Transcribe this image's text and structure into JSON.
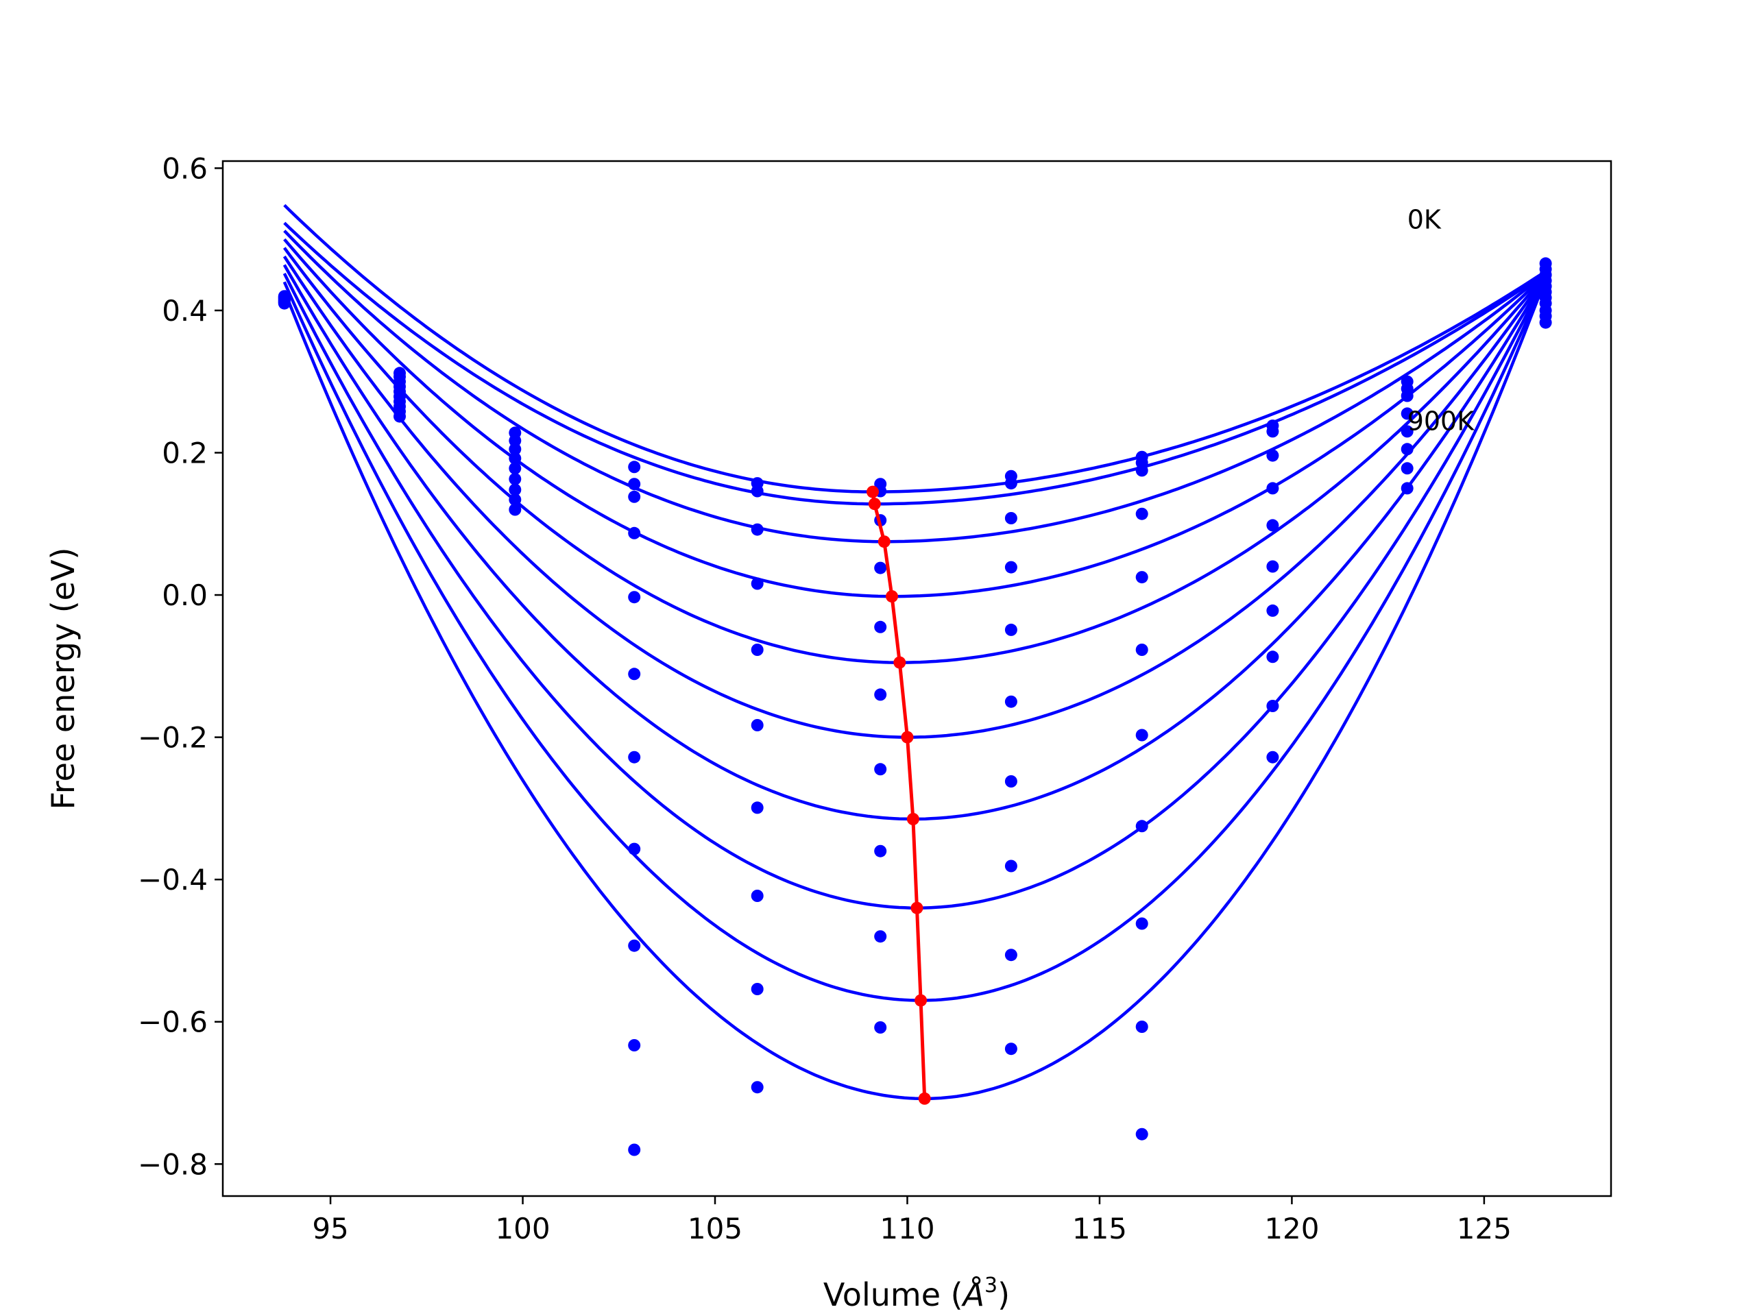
{
  "chart_data": {
    "type": "scatter",
    "title": "",
    "xlabel": "Volume (Å³)",
    "xlabel_main": "Volume (",
    "xlabel_unit": "Å",
    "xlabel_sup": "3",
    "xlabel_close": ")",
    "ylabel": "Free energy (eV)",
    "xlim": [
      92.2,
      128.3
    ],
    "ylim": [
      -0.845,
      0.61
    ],
    "xticks": [
      95,
      100,
      105,
      110,
      115,
      120,
      125
    ],
    "xtick_labels": [
      "95",
      "100",
      "105",
      "110",
      "115",
      "120",
      "125"
    ],
    "yticks": [
      0.6,
      0.4,
      0.2,
      0.0,
      -0.2,
      -0.4,
      -0.6,
      -0.8
    ],
    "ytick_labels": [
      "0.6",
      "0.4",
      "0.2",
      "0.0",
      "−0.2",
      "−0.4",
      "−0.6",
      "−0.8"
    ],
    "grid": false,
    "volumes": [
      93.8,
      96.8,
      99.8,
      102.9,
      106.1,
      109.3,
      112.7,
      116.1,
      119.5,
      123.0,
      126.6
    ],
    "curves": [
      {
        "E": [
          0.41,
          0.312,
          0.228,
          0.18,
          0.157,
          0.156,
          0.167,
          0.194,
          0.238,
          0.3,
          0.383
        ],
        "fit_V0": 109.1,
        "fit_E0": 0.145,
        "fit_left": 0.548,
        "fit_right": 0.455
      },
      {
        "E": [
          0.411,
          0.307,
          0.217,
          0.156,
          0.146,
          0.146,
          0.157,
          0.186,
          0.23,
          0.29,
          0.392
        ],
        "fit_V0": 109.15,
        "fit_E0": 0.128,
        "fit_left": 0.523,
        "fit_right": 0.453
      },
      {
        "E": [
          0.412,
          0.3,
          0.205,
          0.138,
          0.092,
          0.105,
          0.108,
          0.175,
          0.196,
          0.28,
          0.4
        ],
        "fit_V0": 109.4,
        "fit_E0": 0.075,
        "fit_left": 0.512,
        "fit_right": 0.452
      },
      {
        "E": [
          0.413,
          0.293,
          0.192,
          0.087,
          0.016,
          0.038,
          0.039,
          0.114,
          0.15,
          0.255,
          0.41
        ],
        "fit_V0": 109.6,
        "fit_E0": -0.002,
        "fit_left": 0.5,
        "fit_right": 0.451
      },
      {
        "E": [
          0.414,
          0.286,
          0.178,
          -0.003,
          -0.077,
          -0.045,
          -0.049,
          0.025,
          0.098,
          0.23,
          0.418
        ],
        "fit_V0": 109.8,
        "fit_E0": -0.095,
        "fit_left": 0.488,
        "fit_right": 0.45
      },
      {
        "E": [
          0.415,
          0.279,
          0.163,
          -0.111,
          -0.183,
          -0.14,
          -0.15,
          -0.077,
          0.04,
          0.205,
          0.426
        ],
        "fit_V0": 110.0,
        "fit_E0": -0.2,
        "fit_left": 0.476,
        "fit_right": 0.449
      },
      {
        "E": [
          0.416,
          0.272,
          0.148,
          -0.228,
          -0.299,
          -0.245,
          -0.262,
          -0.197,
          -0.022,
          0.178,
          0.434
        ],
        "fit_V0": 110.15,
        "fit_E0": -0.315,
        "fit_left": 0.464,
        "fit_right": 0.448
      },
      {
        "E": [
          0.417,
          0.265,
          0.134,
          -0.357,
          -0.423,
          -0.36,
          -0.381,
          -0.325,
          -0.087,
          0.15,
          0.442
        ],
        "fit_V0": 110.25,
        "fit_E0": -0.44,
        "fit_left": 0.452,
        "fit_right": 0.447
      },
      {
        "E": [
          0.418,
          0.258,
          0.12,
          -0.493,
          -0.554,
          -0.48,
          -0.506,
          -0.462,
          -0.156,
          null,
          0.45
        ],
        "fit_V0": 110.35,
        "fit_E0": -0.57,
        "fit_left": 0.44,
        "fit_right": 0.446
      },
      {
        "E": [
          0.419,
          0.251,
          null,
          -0.633,
          -0.692,
          -0.608,
          -0.638,
          -0.607,
          -0.228,
          null,
          0.458
        ],
        "fit_V0": 110.45,
        "fit_E0": -0.708,
        "fit_left": 0.428,
        "fit_right": 0.445
      },
      {
        "E": [
          0.42,
          null,
          null,
          -0.78,
          null,
          null,
          null,
          -0.758,
          null,
          null,
          0.466
        ],
        "fit_V0": 110.5,
        "fit_E0": null,
        "fit_left": null,
        "fit_right": null
      }
    ],
    "minimum_path": [
      {
        "x": 109.1,
        "y": 0.145
      },
      {
        "x": 109.15,
        "y": 0.128
      },
      {
        "x": 109.4,
        "y": 0.075
      },
      {
        "x": 109.6,
        "y": -0.002
      },
      {
        "x": 109.8,
        "y": -0.095
      },
      {
        "x": 110.0,
        "y": -0.2
      },
      {
        "x": 110.15,
        "y": -0.315
      },
      {
        "x": 110.25,
        "y": -0.44
      },
      {
        "x": 110.35,
        "y": -0.57
      },
      {
        "x": 110.45,
        "y": -0.708
      }
    ],
    "annotations": [
      {
        "text": "0K",
        "x": 123.0,
        "y": 0.515
      },
      {
        "text": "900K",
        "x": 123.0,
        "y": 0.232
      }
    ],
    "colors": {
      "curves": "#0000ff",
      "minimum_path": "#ff0000",
      "frame": "#000000"
    }
  }
}
